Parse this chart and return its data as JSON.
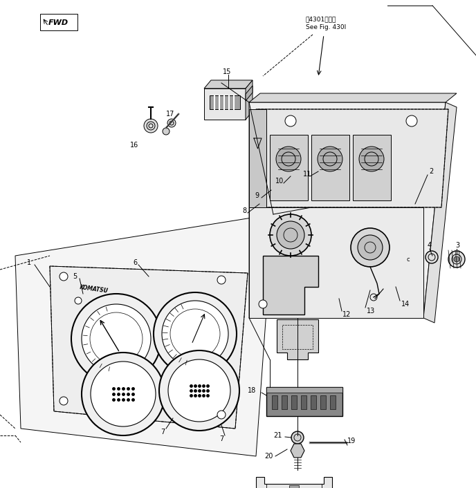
{
  "bg_color": "#ffffff",
  "line_color": "#000000",
  "figsize": [
    6.88,
    7.06
  ],
  "dpi": 100,
  "ref_text_jp": "笥4301図参照",
  "ref_text_en": "See Fig. 430I",
  "fwd_label": "FWD",
  "gray_med": "#888888",
  "gray_light": "#cccccc",
  "gray_dark": "#555555"
}
